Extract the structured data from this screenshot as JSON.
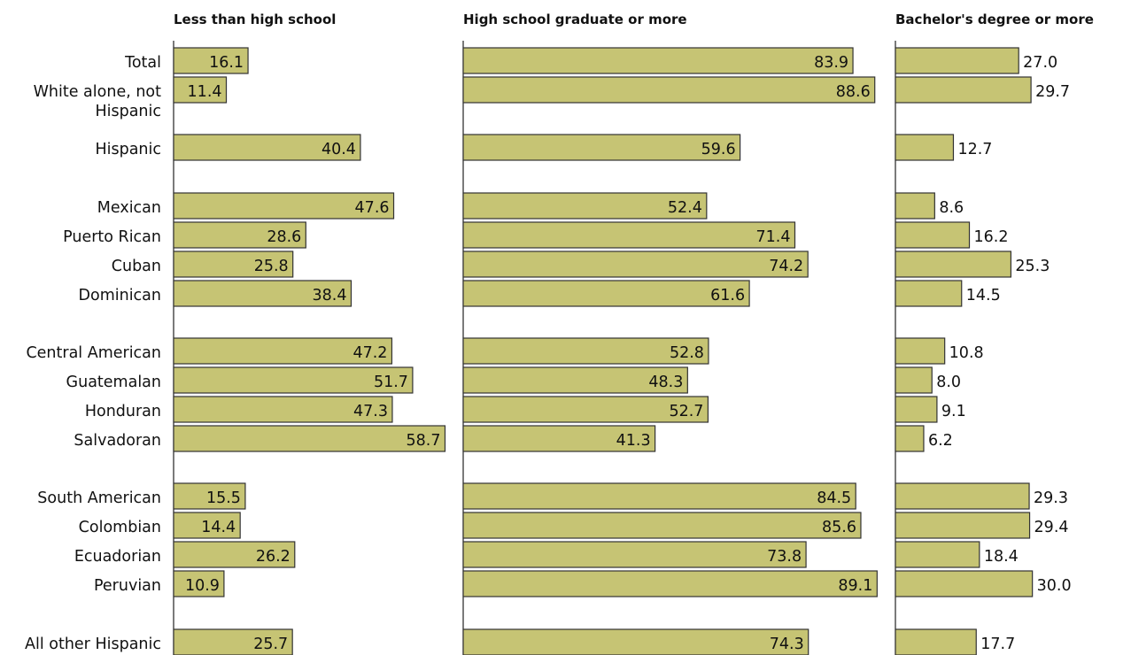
{
  "chart_data": {
    "type": "bar",
    "orientation": "horizontal",
    "colors": {
      "bar_fill": "#c6c474",
      "bar_stroke": "#333333"
    },
    "categories": [
      "Total",
      "White alone, not Hispanic",
      "Hispanic",
      "Mexican",
      "Puerto Rican",
      "Cuban",
      "Dominican",
      "Central American",
      "Guatemalan",
      "Honduran",
      "Salvadoran",
      "South American",
      "Colombian",
      "Ecuadorian",
      "Peruvian",
      "All other Hispanic"
    ],
    "category_label_lines": [
      [
        "Total"
      ],
      [
        "White alone, not",
        "Hispanic"
      ],
      [
        "Hispanic"
      ],
      [
        "Mexican"
      ],
      [
        "Puerto Rican"
      ],
      [
        "Cuban"
      ],
      [
        "Dominican"
      ],
      [
        "Central American"
      ],
      [
        "Guatemalan"
      ],
      [
        "Honduran"
      ],
      [
        "Salvadoran"
      ],
      [
        "South American"
      ],
      [
        "Colombian"
      ],
      [
        "Ecuadorian"
      ],
      [
        "Peruvian"
      ],
      [
        "All other Hispanic"
      ]
    ],
    "series": [
      {
        "name": "Less than high school",
        "values": [
          16.1,
          11.4,
          40.4,
          47.6,
          28.6,
          25.8,
          38.4,
          47.2,
          51.7,
          47.3,
          58.7,
          15.5,
          14.4,
          26.2,
          10.9,
          25.7
        ],
        "labels": [
          "16.1",
          "11.4",
          "40.4",
          "47.6",
          "28.6",
          "25.8",
          "38.4",
          "47.2",
          "51.7",
          "47.3",
          "58.7",
          "15.5",
          "14.4",
          "26.2",
          "10.9",
          "25.7"
        ]
      },
      {
        "name": "High school graduate or more",
        "values": [
          83.9,
          88.6,
          59.6,
          52.4,
          71.4,
          74.2,
          61.6,
          52.8,
          48.3,
          52.7,
          41.3,
          84.5,
          85.6,
          73.8,
          89.1,
          74.3
        ],
        "labels": [
          "83.9",
          "88.6",
          "59.6",
          "52.4",
          "71.4",
          "74.2",
          "61.6",
          "52.8",
          "48.3",
          "52.7",
          "41.3",
          "84.5",
          "85.6",
          "73.8",
          "89.1",
          "74.3"
        ]
      },
      {
        "name": "Bachelor's degree or more",
        "values": [
          27.0,
          29.7,
          12.7,
          8.6,
          16.2,
          25.3,
          14.5,
          10.8,
          8.0,
          9.1,
          6.2,
          29.3,
          29.4,
          18.4,
          30.0,
          17.7
        ],
        "labels": [
          "27.0",
          "29.7",
          "12.7",
          "8.6",
          "16.2",
          "25.3",
          "14.5",
          "10.8",
          "8.0",
          "9.1",
          "6.2",
          "29.3",
          "29.4",
          "18.4",
          "30.0",
          "17.7"
        ]
      }
    ],
    "legend": "none",
    "grid": false
  }
}
